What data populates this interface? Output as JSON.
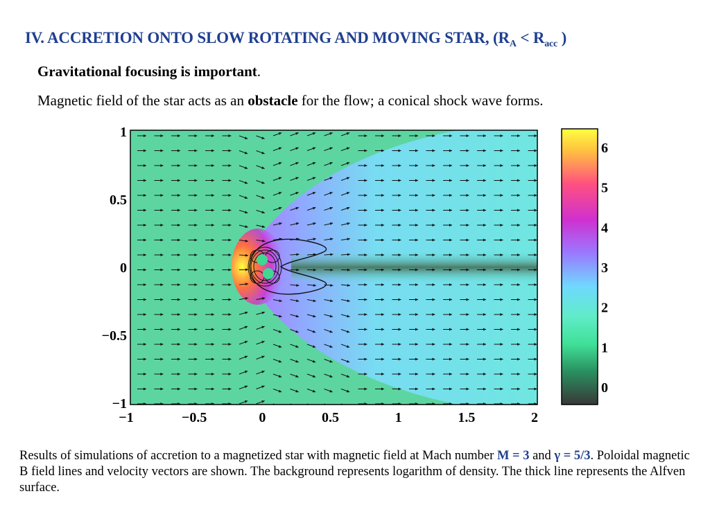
{
  "title": {
    "main": "IV. ACCRETION ONTO SLOW ROTATING AND MOVING STAR, (R",
    "sub_a": "A",
    "lt": " < R",
    "sub_acc": "acc",
    "close": " )"
  },
  "line1": {
    "bold": "Gravitational focusing is important",
    "rest": "."
  },
  "line2": {
    "pre": "Magnetic field of the star acts as an ",
    "bold": "obstacle",
    "post": " for the flow; a conical shock wave forms."
  },
  "figure": {
    "x_ticks": [
      "−1",
      "−0.5",
      "0",
      "0.5",
      "1",
      "1.5",
      "2"
    ],
    "y_ticks": [
      "1",
      "0.5",
      "0",
      "−0.5",
      "−1"
    ],
    "colorbar_ticks": [
      "6",
      "5",
      "4",
      "3",
      "2",
      "1",
      "0"
    ],
    "colors": {
      "background": "#5dd5a0",
      "shocked": "#6fe2d9",
      "wake": "#4a7a66",
      "colorbar": [
        "#ffff30",
        "#ff9a40",
        "#e020c0",
        "#9a70ff",
        "#6fe2ff",
        "#40e0a0",
        "#3a3a3a"
      ]
    }
  },
  "caption": {
    "p1": "Results of simulations of accretion to a magnetized star with magnetic field at Mach number ",
    "mach": "M = 3",
    "p2": " and ",
    "gamma": "γ = 5/3",
    "p3": ". Poloidal magnetic B field lines and velocity vectors are shown. The background represents logarithm of density. The thick line represents the Alfven surface."
  }
}
